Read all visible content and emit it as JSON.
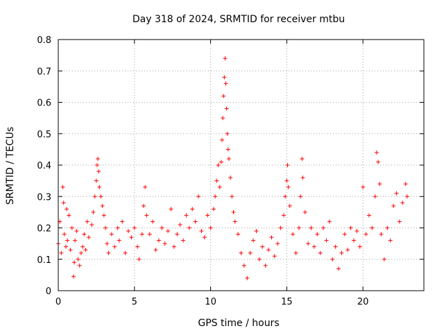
{
  "chart_data": {
    "type": "scatter",
    "title": "Day 318 of 2024, SRMTID for receiver mtbu",
    "xlabel": "GPS time / hours",
    "ylabel": "SRMTID / TECUs",
    "xlim": [
      0,
      24
    ],
    "ylim": [
      0,
      0.8
    ],
    "xticks": [
      0,
      5,
      10,
      15,
      20
    ],
    "yticks": [
      0,
      0.1,
      0.2,
      0.3,
      0.4,
      0.5,
      0.6,
      0.7,
      0.8
    ],
    "xtick_labels": [
      "0",
      "5",
      "10",
      "15",
      "20"
    ],
    "ytick_labels": [
      "0",
      "0.1",
      "0.2",
      "0.3",
      "0.4",
      "0.5",
      "0.6",
      "0.7",
      "0.8"
    ],
    "grid": true,
    "marker": "plus",
    "color": "#ff0000",
    "series": [
      {
        "name": "SRMTID",
        "points": [
          [
            0.0,
            0.15
          ],
          [
            0.1,
            0.22
          ],
          [
            0.2,
            0.12
          ],
          [
            0.3,
            0.33
          ],
          [
            0.35,
            0.28
          ],
          [
            0.4,
            0.18
          ],
          [
            0.5,
            0.14
          ],
          [
            0.55,
            0.26
          ],
          [
            0.6,
            0.16
          ],
          [
            0.7,
            0.24
          ],
          [
            0.8,
            0.13
          ],
          [
            0.9,
            0.2
          ],
          [
            1.0,
            0.045
          ],
          [
            1.05,
            0.09
          ],
          [
            1.1,
            0.16
          ],
          [
            1.2,
            0.19
          ],
          [
            1.3,
            0.1
          ],
          [
            1.4,
            0.08
          ],
          [
            1.5,
            0.12
          ],
          [
            1.6,
            0.14
          ],
          [
            1.7,
            0.18
          ],
          [
            1.8,
            0.13
          ],
          [
            1.9,
            0.22
          ],
          [
            2.0,
            0.17
          ],
          [
            2.2,
            0.21
          ],
          [
            2.3,
            0.25
          ],
          [
            2.4,
            0.3
          ],
          [
            2.5,
            0.35
          ],
          [
            2.55,
            0.4
          ],
          [
            2.6,
            0.42
          ],
          [
            2.65,
            0.38
          ],
          [
            2.7,
            0.33
          ],
          [
            2.8,
            0.3
          ],
          [
            2.9,
            0.27
          ],
          [
            3.0,
            0.24
          ],
          [
            3.1,
            0.2
          ],
          [
            3.2,
            0.15
          ],
          [
            3.3,
            0.12
          ],
          [
            3.5,
            0.18
          ],
          [
            3.7,
            0.14
          ],
          [
            3.9,
            0.2
          ],
          [
            4.0,
            0.16
          ],
          [
            4.2,
            0.22
          ],
          [
            4.4,
            0.12
          ],
          [
            4.6,
            0.19
          ],
          [
            4.8,
            0.17
          ],
          [
            5.0,
            0.2
          ],
          [
            5.2,
            0.14
          ],
          [
            5.3,
            0.1
          ],
          [
            5.5,
            0.18
          ],
          [
            5.6,
            0.27
          ],
          [
            5.7,
            0.33
          ],
          [
            5.8,
            0.24
          ],
          [
            6.0,
            0.18
          ],
          [
            6.2,
            0.22
          ],
          [
            6.4,
            0.13
          ],
          [
            6.6,
            0.16
          ],
          [
            6.8,
            0.2
          ],
          [
            7.0,
            0.15
          ],
          [
            7.2,
            0.19
          ],
          [
            7.4,
            0.26
          ],
          [
            7.6,
            0.14
          ],
          [
            7.8,
            0.18
          ],
          [
            8.0,
            0.21
          ],
          [
            8.2,
            0.16
          ],
          [
            8.4,
            0.24
          ],
          [
            8.6,
            0.2
          ],
          [
            8.8,
            0.26
          ],
          [
            9.0,
            0.22
          ],
          [
            9.2,
            0.3
          ],
          [
            9.4,
            0.19
          ],
          [
            9.6,
            0.17
          ],
          [
            9.8,
            0.24
          ],
          [
            10.0,
            0.2
          ],
          [
            10.2,
            0.26
          ],
          [
            10.3,
            0.3
          ],
          [
            10.4,
            0.35
          ],
          [
            10.5,
            0.4
          ],
          [
            10.6,
            0.33
          ],
          [
            10.7,
            0.41
          ],
          [
            10.75,
            0.48
          ],
          [
            10.8,
            0.55
          ],
          [
            10.85,
            0.62
          ],
          [
            10.9,
            0.68
          ],
          [
            10.95,
            0.74
          ],
          [
            11.0,
            0.66
          ],
          [
            11.05,
            0.58
          ],
          [
            11.1,
            0.5
          ],
          [
            11.15,
            0.45
          ],
          [
            11.2,
            0.42
          ],
          [
            11.3,
            0.36
          ],
          [
            11.4,
            0.3
          ],
          [
            11.5,
            0.25
          ],
          [
            11.6,
            0.22
          ],
          [
            11.8,
            0.18
          ],
          [
            12.0,
            0.12
          ],
          [
            12.2,
            0.08
          ],
          [
            12.4,
            0.04
          ],
          [
            12.6,
            0.12
          ],
          [
            12.8,
            0.16
          ],
          [
            13.0,
            0.19
          ],
          [
            13.2,
            0.1
          ],
          [
            13.4,
            0.14
          ],
          [
            13.6,
            0.08
          ],
          [
            13.8,
            0.13
          ],
          [
            14.0,
            0.17
          ],
          [
            14.2,
            0.11
          ],
          [
            14.4,
            0.15
          ],
          [
            14.6,
            0.2
          ],
          [
            14.8,
            0.24
          ],
          [
            14.9,
            0.3
          ],
          [
            15.0,
            0.35
          ],
          [
            15.05,
            0.4
          ],
          [
            15.1,
            0.33
          ],
          [
            15.2,
            0.27
          ],
          [
            15.4,
            0.18
          ],
          [
            15.6,
            0.12
          ],
          [
            15.8,
            0.2
          ],
          [
            15.9,
            0.3
          ],
          [
            16.0,
            0.42
          ],
          [
            16.05,
            0.36
          ],
          [
            16.2,
            0.25
          ],
          [
            16.4,
            0.15
          ],
          [
            16.6,
            0.2
          ],
          [
            16.8,
            0.14
          ],
          [
            17.0,
            0.18
          ],
          [
            17.2,
            0.12
          ],
          [
            17.4,
            0.2
          ],
          [
            17.6,
            0.16
          ],
          [
            17.8,
            0.22
          ],
          [
            18.0,
            0.1
          ],
          [
            18.2,
            0.14
          ],
          [
            18.4,
            0.07
          ],
          [
            18.6,
            0.12
          ],
          [
            18.8,
            0.18
          ],
          [
            19.0,
            0.13
          ],
          [
            19.2,
            0.2
          ],
          [
            19.4,
            0.16
          ],
          [
            19.6,
            0.19
          ],
          [
            19.8,
            0.14
          ],
          [
            20.0,
            0.33
          ],
          [
            20.2,
            0.18
          ],
          [
            20.4,
            0.24
          ],
          [
            20.6,
            0.2
          ],
          [
            20.8,
            0.3
          ],
          [
            20.9,
            0.44
          ],
          [
            21.0,
            0.41
          ],
          [
            21.1,
            0.34
          ],
          [
            21.2,
            0.18
          ],
          [
            21.4,
            0.1
          ],
          [
            21.6,
            0.2
          ],
          [
            21.8,
            0.16
          ],
          [
            22.0,
            0.27
          ],
          [
            22.2,
            0.31
          ],
          [
            22.4,
            0.22
          ],
          [
            22.6,
            0.28
          ],
          [
            22.8,
            0.34
          ],
          [
            22.9,
            0.3
          ]
        ]
      }
    ]
  }
}
